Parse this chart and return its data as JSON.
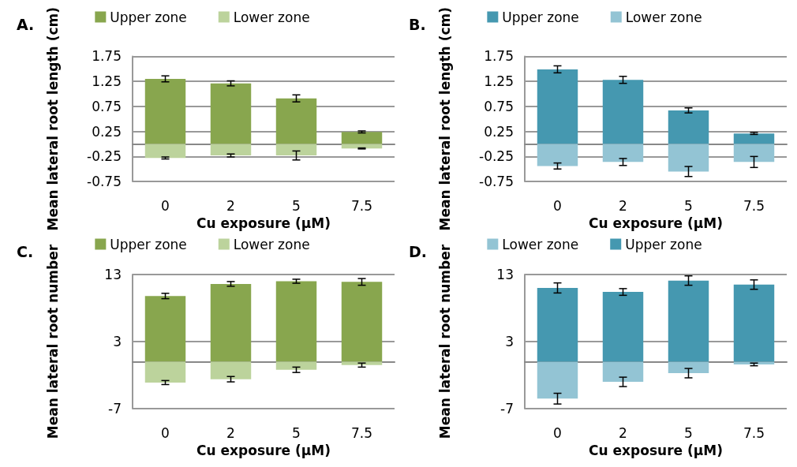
{
  "chart_data": [
    {
      "type": "bar",
      "title": "A.",
      "xlabel": "Cu exposure (µM)",
      "ylabel": "Mean lateral root length (cm)",
      "categories": [
        "0",
        "2",
        "5",
        "7.5"
      ],
      "stacked": true,
      "ylim": [
        -0.75,
        1.75
      ],
      "yticks": [
        -0.75,
        -0.25,
        0.25,
        0.75,
        1.25,
        1.75
      ],
      "grid": "y",
      "legend": "top",
      "series": [
        {
          "name": "Upper zone",
          "color": "#88a64e",
          "values": [
            1.3,
            1.21,
            0.91,
            0.24
          ],
          "errors": [
            0.06,
            0.05,
            0.07,
            0.02
          ]
        },
        {
          "name": "Lower zone",
          "color": "#bcd39c",
          "values": [
            -0.28,
            -0.23,
            -0.23,
            -0.09
          ],
          "errors": [
            0.02,
            0.03,
            0.09,
            0.01
          ]
        }
      ]
    },
    {
      "type": "bar",
      "title": "B.",
      "xlabel": "Cu exposure (µM)",
      "ylabel": "Mean lateral root length (cm)",
      "categories": [
        "0",
        "2",
        "5",
        "7.5"
      ],
      "stacked": true,
      "ylim": [
        -0.75,
        1.75
      ],
      "yticks": [
        -0.75,
        -0.25,
        0.25,
        0.75,
        1.25,
        1.75
      ],
      "grid": "y",
      "legend": "top",
      "series": [
        {
          "name": "Upper zone",
          "color": "#4598b0",
          "values": [
            1.49,
            1.28,
            0.67,
            0.21
          ],
          "errors": [
            0.07,
            0.07,
            0.05,
            0.02
          ]
        },
        {
          "name": "Lower zone",
          "color": "#93c4d4",
          "values": [
            -0.44,
            -0.36,
            -0.55,
            -0.36
          ],
          "errors": [
            0.06,
            0.07,
            0.1,
            0.11
          ]
        }
      ]
    },
    {
      "type": "bar",
      "title": "C.",
      "xlabel": "Cu exposure (µM)",
      "ylabel": "Mean lateral root number",
      "categories": [
        "0",
        "2",
        "5",
        "7.5"
      ],
      "stacked": true,
      "ylim": [
        -7,
        13
      ],
      "yticks": [
        -7,
        3,
        13
      ],
      "grid": "y",
      "legend": "top",
      "series": [
        {
          "name": "Upper zone",
          "color": "#88a64e",
          "values": [
            9.8,
            11.6,
            12.0,
            11.9
          ],
          "errors": [
            0.4,
            0.35,
            0.3,
            0.5
          ]
        },
        {
          "name": "Lower zone",
          "color": "#bcd39c",
          "values": [
            -3.1,
            -2.6,
            -1.2,
            -0.5
          ],
          "errors": [
            0.3,
            0.4,
            0.4,
            0.3
          ]
        }
      ]
    },
    {
      "type": "bar",
      "title": "D.",
      "xlabel": "Cu exposure (µM)",
      "ylabel": "Mean lateral root number",
      "categories": [
        "0",
        "2",
        "5",
        "7.5"
      ],
      "stacked": true,
      "ylim": [
        -7,
        13
      ],
      "yticks": [
        -7,
        3,
        13
      ],
      "grid": "y",
      "legend": "top",
      "series": [
        {
          "name": "Lower zone",
          "color": "#93c4d4",
          "values": [
            -5.5,
            -3.0,
            -1.7,
            -0.4
          ],
          "errors": [
            0.8,
            0.7,
            0.7,
            0.2
          ]
        },
        {
          "name": "Upper zone",
          "color": "#4598b0",
          "values": [
            11.0,
            10.4,
            12.1,
            11.5
          ],
          "errors": [
            0.75,
            0.5,
            0.7,
            0.7
          ]
        }
      ]
    }
  ]
}
